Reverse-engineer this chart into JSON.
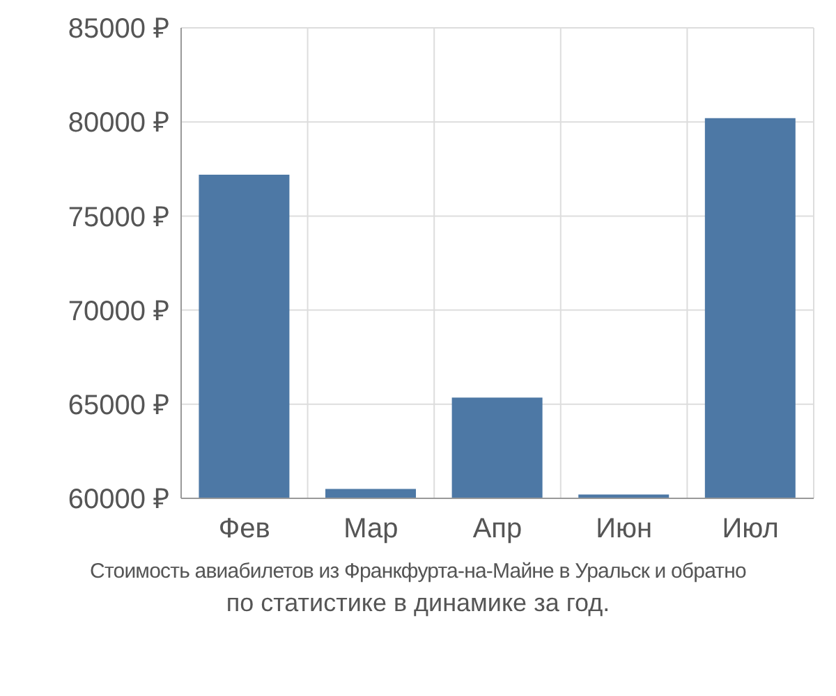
{
  "chart_data": {
    "type": "bar",
    "categories": [
      "Фев",
      "Мар",
      "Апр",
      "Июн",
      "Июл"
    ],
    "values": [
      77200,
      60500,
      65350,
      60200,
      80200
    ],
    "color": "#4d78a5",
    "ylim": [
      60000,
      85000
    ],
    "yticks": [
      {
        "value": 60000,
        "label": "60000 ₽"
      },
      {
        "value": 65000,
        "label": "65000 ₽"
      },
      {
        "value": 70000,
        "label": "70000 ₽"
      },
      {
        "value": 75000,
        "label": "75000 ₽"
      },
      {
        "value": 80000,
        "label": "80000 ₽"
      },
      {
        "value": 85000,
        "label": "85000 ₽"
      }
    ],
    "grid": true,
    "annotations": [
      "Стоимость авиабилетов из Франкфурта-на-Майне в Уральск и обратно",
      "по статистике в динамике за год."
    ]
  }
}
